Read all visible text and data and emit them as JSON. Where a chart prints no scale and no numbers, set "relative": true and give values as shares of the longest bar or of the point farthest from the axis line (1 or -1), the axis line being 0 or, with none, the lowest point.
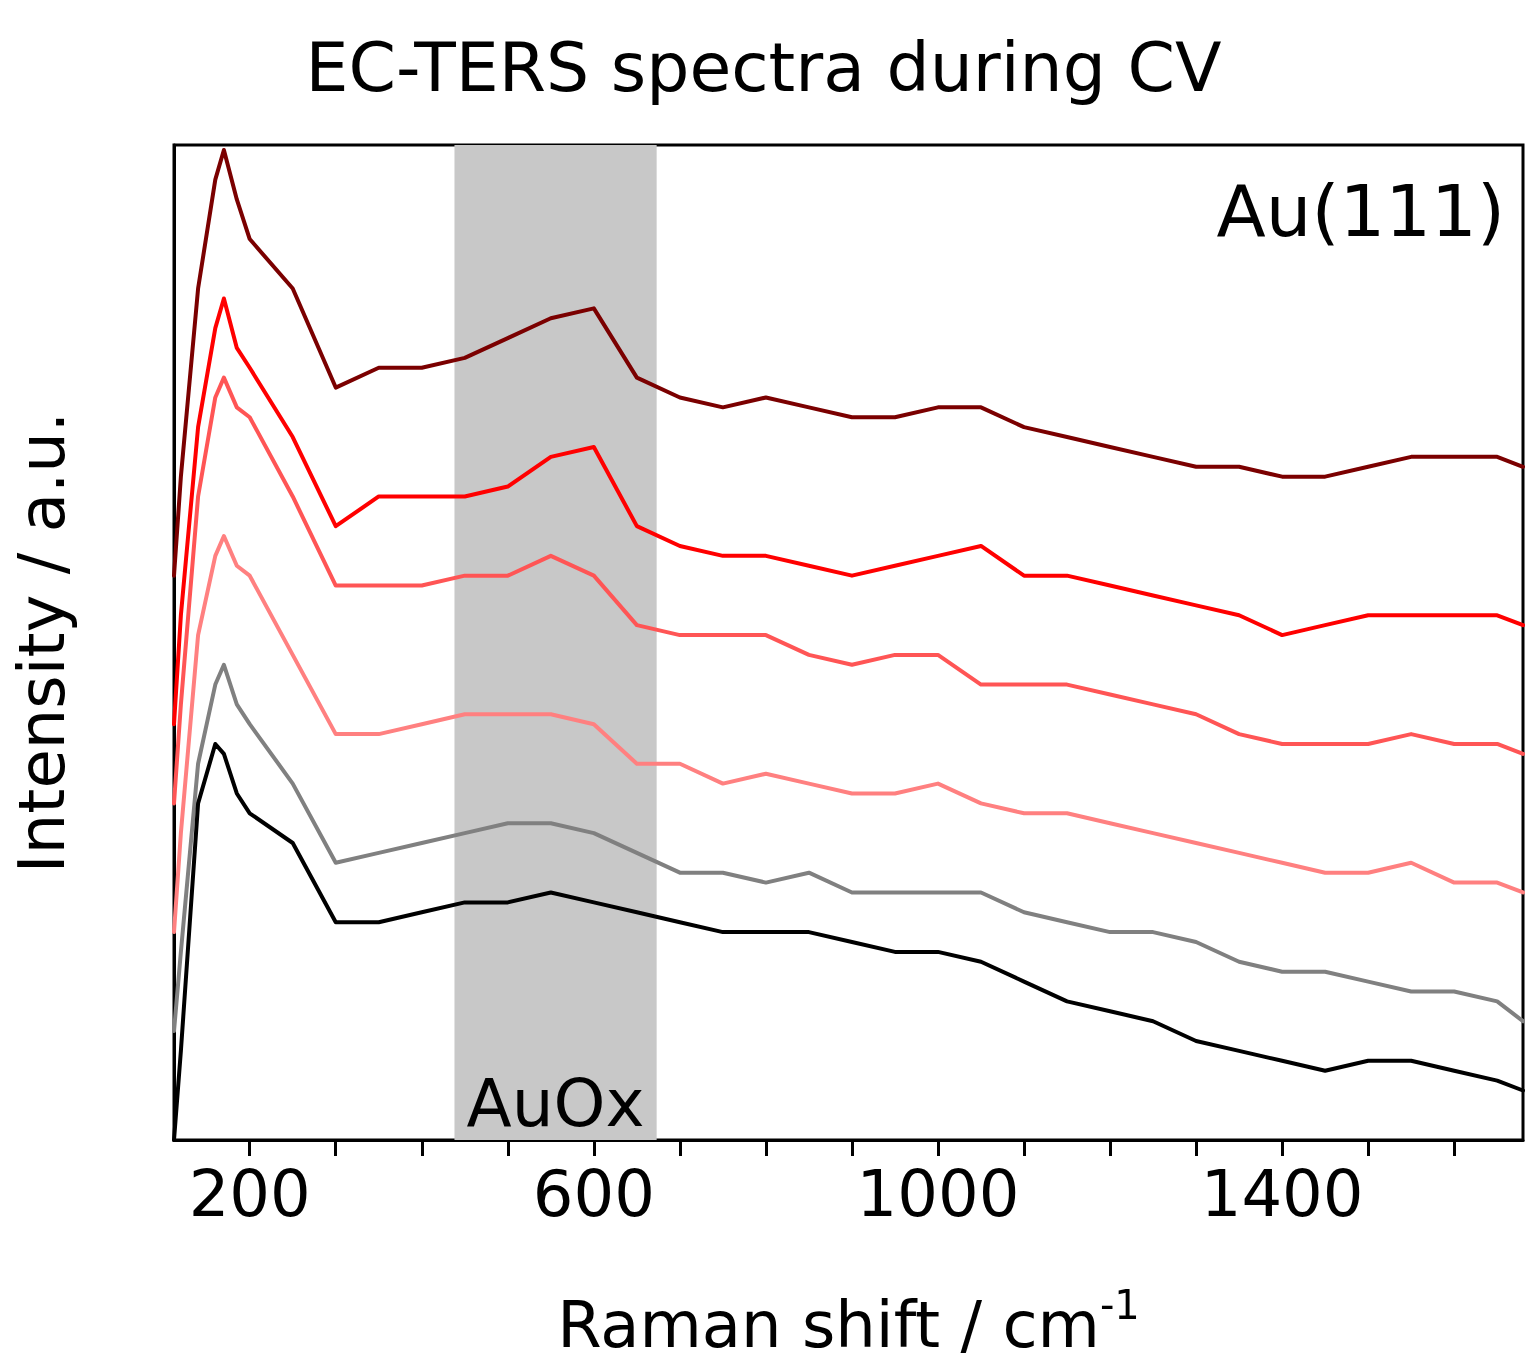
{
  "chart_data": {
    "type": "line",
    "title": "EC-TERS spectra during CV",
    "xlabel": "Raman shift / cm$^{-1}$",
    "ylabel": "Intensity / a.u.",
    "relative": true,
    "grid": false,
    "tick_labels": "x",
    "marker": "none",
    "line_style": "solid",
    "xlim": [
      112,
      1680
    ],
    "xticks": [
      {
        "value": 200,
        "label": "200"
      },
      {
        "value": 300,
        "label": null
      },
      {
        "value": 400,
        "label": null
      },
      {
        "value": 500,
        "label": null
      },
      {
        "value": 600,
        "label": "600"
      },
      {
        "value": 700,
        "label": null
      },
      {
        "value": 800,
        "label": null
      },
      {
        "value": 900,
        "label": null
      },
      {
        "value": 1000,
        "label": "1000"
      },
      {
        "value": 1100,
        "label": null
      },
      {
        "value": 1200,
        "label": null
      },
      {
        "value": 1300,
        "label": null
      },
      {
        "value": 1400,
        "label": "1400"
      },
      {
        "value": 1500,
        "label": null
      },
      {
        "value": 1600,
        "label": null
      }
    ],
    "x": [
      112,
      120,
      140,
      160,
      170,
      185,
      200,
      250,
      300,
      350,
      400,
      450,
      500,
      550,
      600,
      650,
      700,
      750,
      800,
      850,
      900,
      950,
      1000,
      1050,
      1100,
      1150,
      1200,
      1250,
      1300,
      1350,
      1400,
      1450,
      1500,
      1550,
      1600,
      1650,
      1680
    ],
    "series": [
      {
        "color": "#7b0000",
        "values": [
          0.57,
          0.67,
          0.86,
          0.97,
          1.0,
          0.95,
          0.91,
          0.86,
          0.76,
          0.78,
          0.78,
          0.79,
          0.81,
          0.83,
          0.84,
          0.77,
          0.75,
          0.74,
          0.75,
          0.74,
          0.73,
          0.73,
          0.74,
          0.74,
          0.72,
          0.71,
          0.7,
          0.69,
          0.68,
          0.68,
          0.67,
          0.67,
          0.68,
          0.69,
          0.69,
          0.69,
          0.68
        ]
      },
      {
        "color": "#ff0000",
        "values": [
          0.42,
          0.53,
          0.72,
          0.82,
          0.85,
          0.8,
          0.78,
          0.71,
          0.62,
          0.65,
          0.65,
          0.65,
          0.66,
          0.69,
          0.7,
          0.62,
          0.6,
          0.59,
          0.59,
          0.58,
          0.57,
          0.58,
          0.59,
          0.6,
          0.57,
          0.57,
          0.56,
          0.55,
          0.54,
          0.53,
          0.51,
          0.52,
          0.53,
          0.53,
          0.53,
          0.53,
          0.52
        ]
      },
      {
        "color": "#ff5555",
        "values": [
          0.34,
          0.44,
          0.65,
          0.75,
          0.77,
          0.74,
          0.73,
          0.65,
          0.56,
          0.56,
          0.56,
          0.57,
          0.57,
          0.59,
          0.57,
          0.52,
          0.51,
          0.51,
          0.51,
          0.49,
          0.48,
          0.49,
          0.49,
          0.46,
          0.46,
          0.46,
          0.45,
          0.44,
          0.43,
          0.41,
          0.4,
          0.4,
          0.4,
          0.41,
          0.4,
          0.4,
          0.39
        ]
      },
      {
        "color": "#ff8080",
        "values": [
          0.21,
          0.31,
          0.51,
          0.59,
          0.61,
          0.58,
          0.57,
          0.49,
          0.41,
          0.41,
          0.42,
          0.43,
          0.43,
          0.43,
          0.42,
          0.38,
          0.38,
          0.36,
          0.37,
          0.36,
          0.35,
          0.35,
          0.36,
          0.34,
          0.33,
          0.33,
          0.32,
          0.31,
          0.3,
          0.29,
          0.28,
          0.27,
          0.27,
          0.28,
          0.26,
          0.26,
          0.25
        ]
      },
      {
        "color": "#808080",
        "values": [
          0.11,
          0.19,
          0.38,
          0.46,
          0.48,
          0.44,
          0.42,
          0.36,
          0.28,
          0.29,
          0.3,
          0.31,
          0.32,
          0.32,
          0.31,
          0.29,
          0.27,
          0.27,
          0.26,
          0.27,
          0.25,
          0.25,
          0.25,
          0.25,
          0.23,
          0.22,
          0.21,
          0.21,
          0.2,
          0.18,
          0.17,
          0.17,
          0.16,
          0.15,
          0.15,
          0.14,
          0.12
        ]
      },
      {
        "color": "#000000",
        "values": [
          0.0,
          0.09,
          0.34,
          0.4,
          0.39,
          0.35,
          0.33,
          0.3,
          0.22,
          0.22,
          0.23,
          0.24,
          0.24,
          0.25,
          0.24,
          0.23,
          0.22,
          0.21,
          0.21,
          0.21,
          0.2,
          0.19,
          0.19,
          0.18,
          0.16,
          0.14,
          0.13,
          0.12,
          0.1,
          0.09,
          0.08,
          0.07,
          0.08,
          0.08,
          0.07,
          0.06,
          0.05
        ]
      }
    ],
    "bands": [
      {
        "axis": "x",
        "from": 438,
        "to": 673,
        "label": "AuOx",
        "color": "#c8c8c8"
      }
    ],
    "annotations": [
      "Au(111)"
    ]
  }
}
